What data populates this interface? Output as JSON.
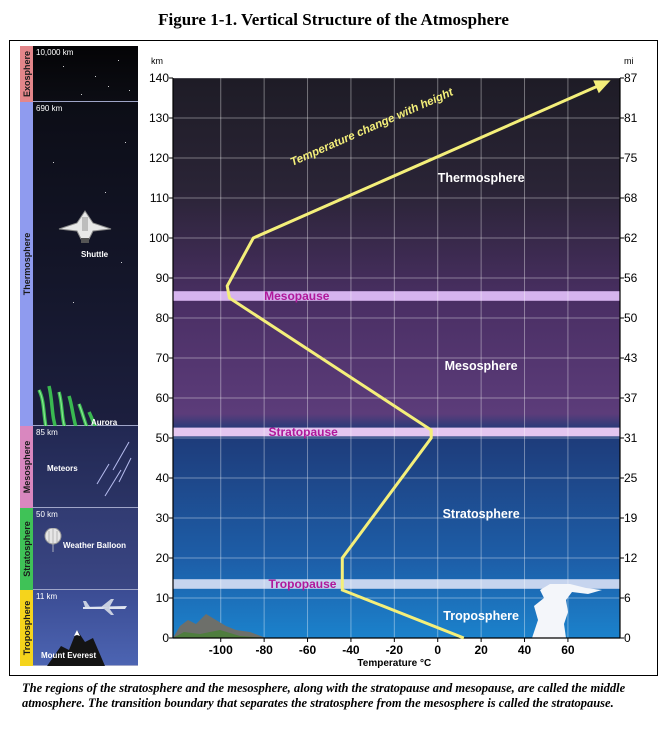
{
  "figure_title": "Figure 1-1. Vertical Structure of the Atmosphere",
  "left_panel": {
    "bands": [
      {
        "name": "Exosphere",
        "altitude": "10,000 km",
        "color": "#e3868a"
      },
      {
        "name": "Thermosphere",
        "altitude": "690 km",
        "color": "#8f9bef"
      },
      {
        "name": "Mesosphere",
        "altitude": "85 km",
        "color": "#d987bf"
      },
      {
        "name": "Stratosphere",
        "altitude": "50 km",
        "color": "#3fc257"
      },
      {
        "name": "Troposphere",
        "altitude": "11 km",
        "color": "#f5d41c"
      }
    ],
    "items": {
      "shuttle": "Shuttle",
      "aurora": "Aurora",
      "meteors": "Meteors",
      "weather_balloon": "Weather Balloon",
      "mount_everest": "Mount Everest"
    }
  },
  "chart_data": {
    "type": "line",
    "x_unit_label": "Temperature °C",
    "x_ticks": [
      -100,
      -80,
      -60,
      -40,
      -20,
      0,
      20,
      40,
      60
    ],
    "xlim": [
      -122,
      84
    ],
    "y_left_unit": "km",
    "y_left_ticks": [
      0,
      10,
      20,
      30,
      40,
      50,
      60,
      70,
      80,
      90,
      100,
      110,
      120,
      130,
      140
    ],
    "ylim": [
      0,
      140
    ],
    "y_right_unit": "mi",
    "y_right_ticks": [
      {
        "km": 0,
        "label": "0"
      },
      {
        "km": 10,
        "label": "6"
      },
      {
        "km": 20,
        "label": "12"
      },
      {
        "km": 30,
        "label": "19"
      },
      {
        "km": 40,
        "label": "25"
      },
      {
        "km": 50,
        "label": "31"
      },
      {
        "km": 60,
        "label": "37"
      },
      {
        "km": 70,
        "label": "43"
      },
      {
        "km": 80,
        "label": "50"
      },
      {
        "km": 90,
        "label": "56"
      },
      {
        "km": 100,
        "label": "62"
      },
      {
        "km": 110,
        "label": "68"
      },
      {
        "km": 120,
        "label": "75"
      },
      {
        "km": 130,
        "label": "81"
      },
      {
        "km": 140,
        "label": "87"
      }
    ],
    "grid": true,
    "temperature_profile": {
      "label": "Temperature change with height",
      "color": "#f4ef7a",
      "x": [
        12,
        -44,
        -44,
        -3,
        -3,
        -96,
        -97,
        -85,
        78
      ],
      "y": [
        0,
        12,
        20,
        50,
        52,
        85,
        88,
        100,
        139
      ]
    },
    "boundaries": [
      {
        "name": "Mesopause",
        "km_low": 84.3,
        "km_high": 86.7,
        "color": "#d6b4ee",
        "text_color": "#b0199b"
      },
      {
        "name": "Stratopause",
        "km_low": 50.4,
        "km_high": 52.6,
        "color": "#e4c6ef",
        "text_color": "#b0199b"
      },
      {
        "name": "Tropopause",
        "km_low": 12.3,
        "km_high": 14.7,
        "color": "#c6d4ee",
        "text_color": "#b0199b"
      }
    ],
    "layers": [
      {
        "name": "Thermosphere",
        "x": 20,
        "km": 115
      },
      {
        "name": "Mesosphere",
        "x": 20,
        "km": 68
      },
      {
        "name": "Stratosphere",
        "x": 20,
        "km": 31
      },
      {
        "name": "Troposphere",
        "x": 20,
        "km": 5.5
      }
    ]
  },
  "caption": "The regions of the stratosphere and the mesosphere, along with the stratopause and mesopause, are called the middle atmosphere. The transition boundary that separates the stratosphere from the mesosphere is called the stratopause."
}
